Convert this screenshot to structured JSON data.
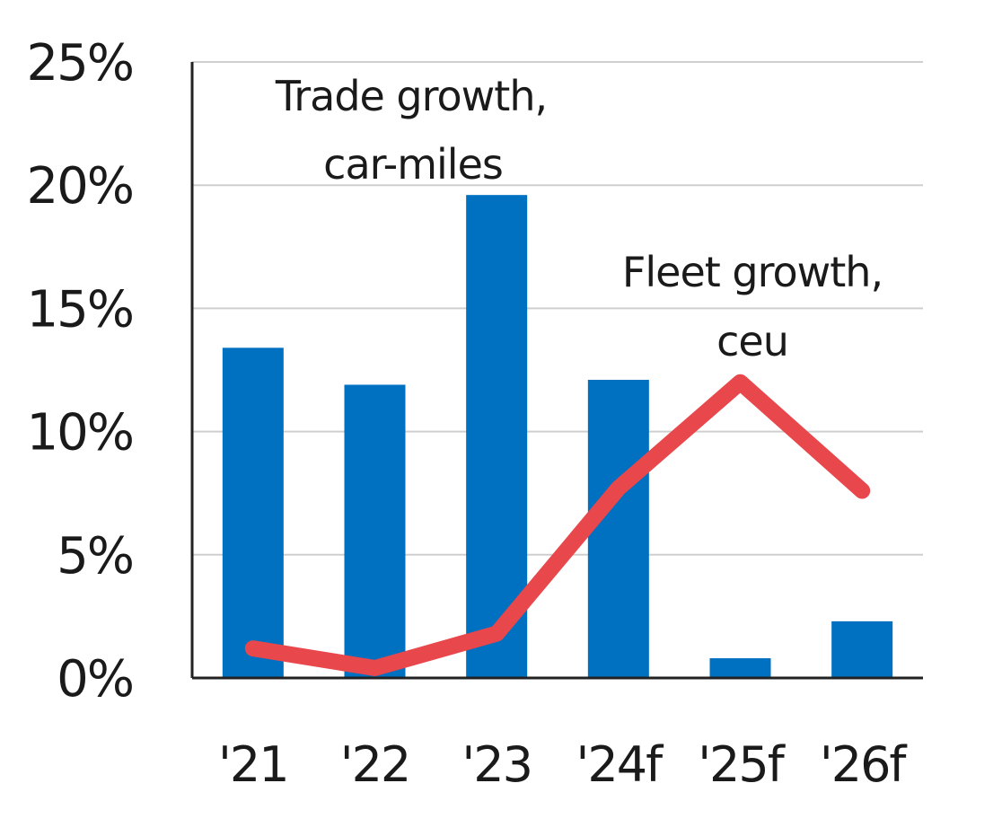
{
  "chart_data": {
    "type": "bar",
    "categories": [
      "'21",
      "'22",
      "'23",
      "'24f",
      "'25f",
      "'26f"
    ],
    "series": [
      {
        "name": "Trade growth, car-miles",
        "kind": "bar",
        "values": [
          13.4,
          11.9,
          19.6,
          12.1,
          0.8,
          2.3
        ]
      },
      {
        "name": "Fleet growth, ceu",
        "kind": "line",
        "values": [
          1.2,
          0.4,
          1.8,
          7.7,
          12.0,
          7.6
        ]
      }
    ],
    "annotations": [
      {
        "lines": [
          "Trade growth,",
          "car-miles"
        ]
      },
      {
        "lines": [
          "Fleet growth,",
          "ceu"
        ]
      }
    ],
    "yticks": [
      "0%",
      "5%",
      "10%",
      "15%",
      "20%",
      "25%"
    ],
    "ylim": [
      0,
      25
    ],
    "grid": true,
    "legend": "none",
    "colors": {
      "bar": "#0070c0",
      "line": "#e8474c"
    },
    "title": "",
    "xlabel": "",
    "ylabel": ""
  }
}
